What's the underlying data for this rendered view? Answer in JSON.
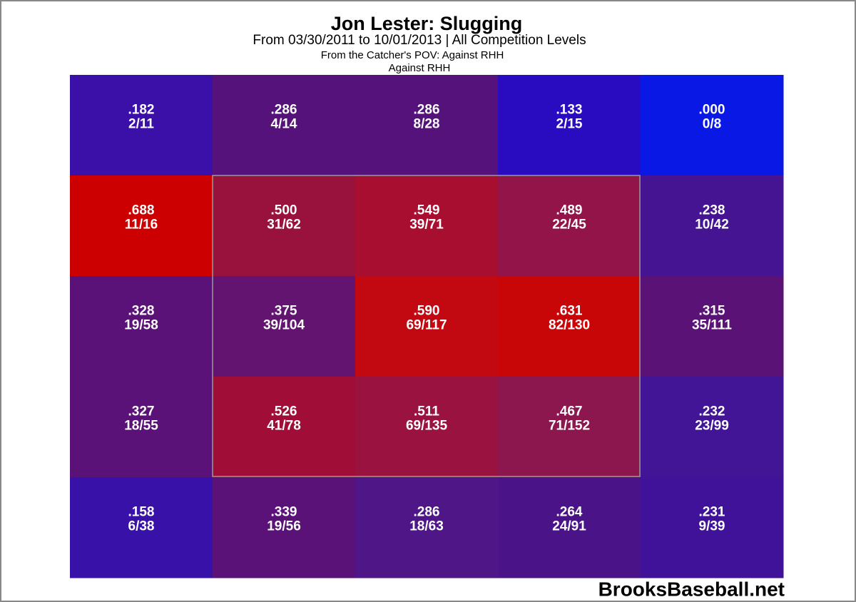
{
  "chart_data": {
    "type": "heatmap",
    "title": "Jon Lester: Slugging",
    "subtitle": "From 03/30/2011 to 10/01/2013 | All Competition Levels",
    "subtitle2": "From the Catcher's POV:   Against RHH",
    "subtitle3": "Against RHH",
    "source": "BrooksBaseball.net",
    "values": [
      [
        0.182,
        0.286,
        0.286,
        0.133,
        0.0
      ],
      [
        0.688,
        0.5,
        0.549,
        0.489,
        0.238
      ],
      [
        0.328,
        0.375,
        0.59,
        0.631,
        0.315
      ],
      [
        0.327,
        0.526,
        0.511,
        0.467,
        0.232
      ],
      [
        0.158,
        0.339,
        0.286,
        0.264,
        0.231
      ]
    ],
    "value_labels": [
      [
        ".182",
        ".286",
        ".286",
        ".133",
        ".000"
      ],
      [
        ".688",
        ".500",
        ".549",
        ".489",
        ".238"
      ],
      [
        ".328",
        ".375",
        ".590",
        ".631",
        ".315"
      ],
      [
        ".327",
        ".526",
        ".511",
        ".467",
        ".232"
      ],
      [
        ".158",
        ".339",
        ".286",
        ".264",
        ".231"
      ]
    ],
    "fractions": [
      [
        "2/11",
        "4/14",
        "8/28",
        "2/15",
        "0/8"
      ],
      [
        "11/16",
        "31/62",
        "39/71",
        "22/45",
        "10/42"
      ],
      [
        "19/58",
        "39/104",
        "69/117",
        "82/130",
        "35/111"
      ],
      [
        "18/55",
        "41/78",
        "69/135",
        "71/152",
        "23/99"
      ],
      [
        "6/38",
        "19/56",
        "18/63",
        "24/91",
        "9/39"
      ]
    ],
    "colors": [
      [
        "#3a10a8",
        "#55127a",
        "#55127a",
        "#2a0cc0",
        "#0a18e6"
      ],
      [
        "#cc0000",
        "#99123e",
        "#a80e30",
        "#931448",
        "#451492"
      ],
      [
        "#5b1278",
        "#621470",
        "#c20810",
        "#c80608",
        "#5a1276"
      ],
      [
        "#5a1278",
        "#a00e38",
        "#9a1240",
        "#8c164e",
        "#421496"
      ],
      [
        "#3812a8",
        "#5a1278",
        "#4e1686",
        "#4a1488",
        "#40129a"
      ]
    ]
  }
}
